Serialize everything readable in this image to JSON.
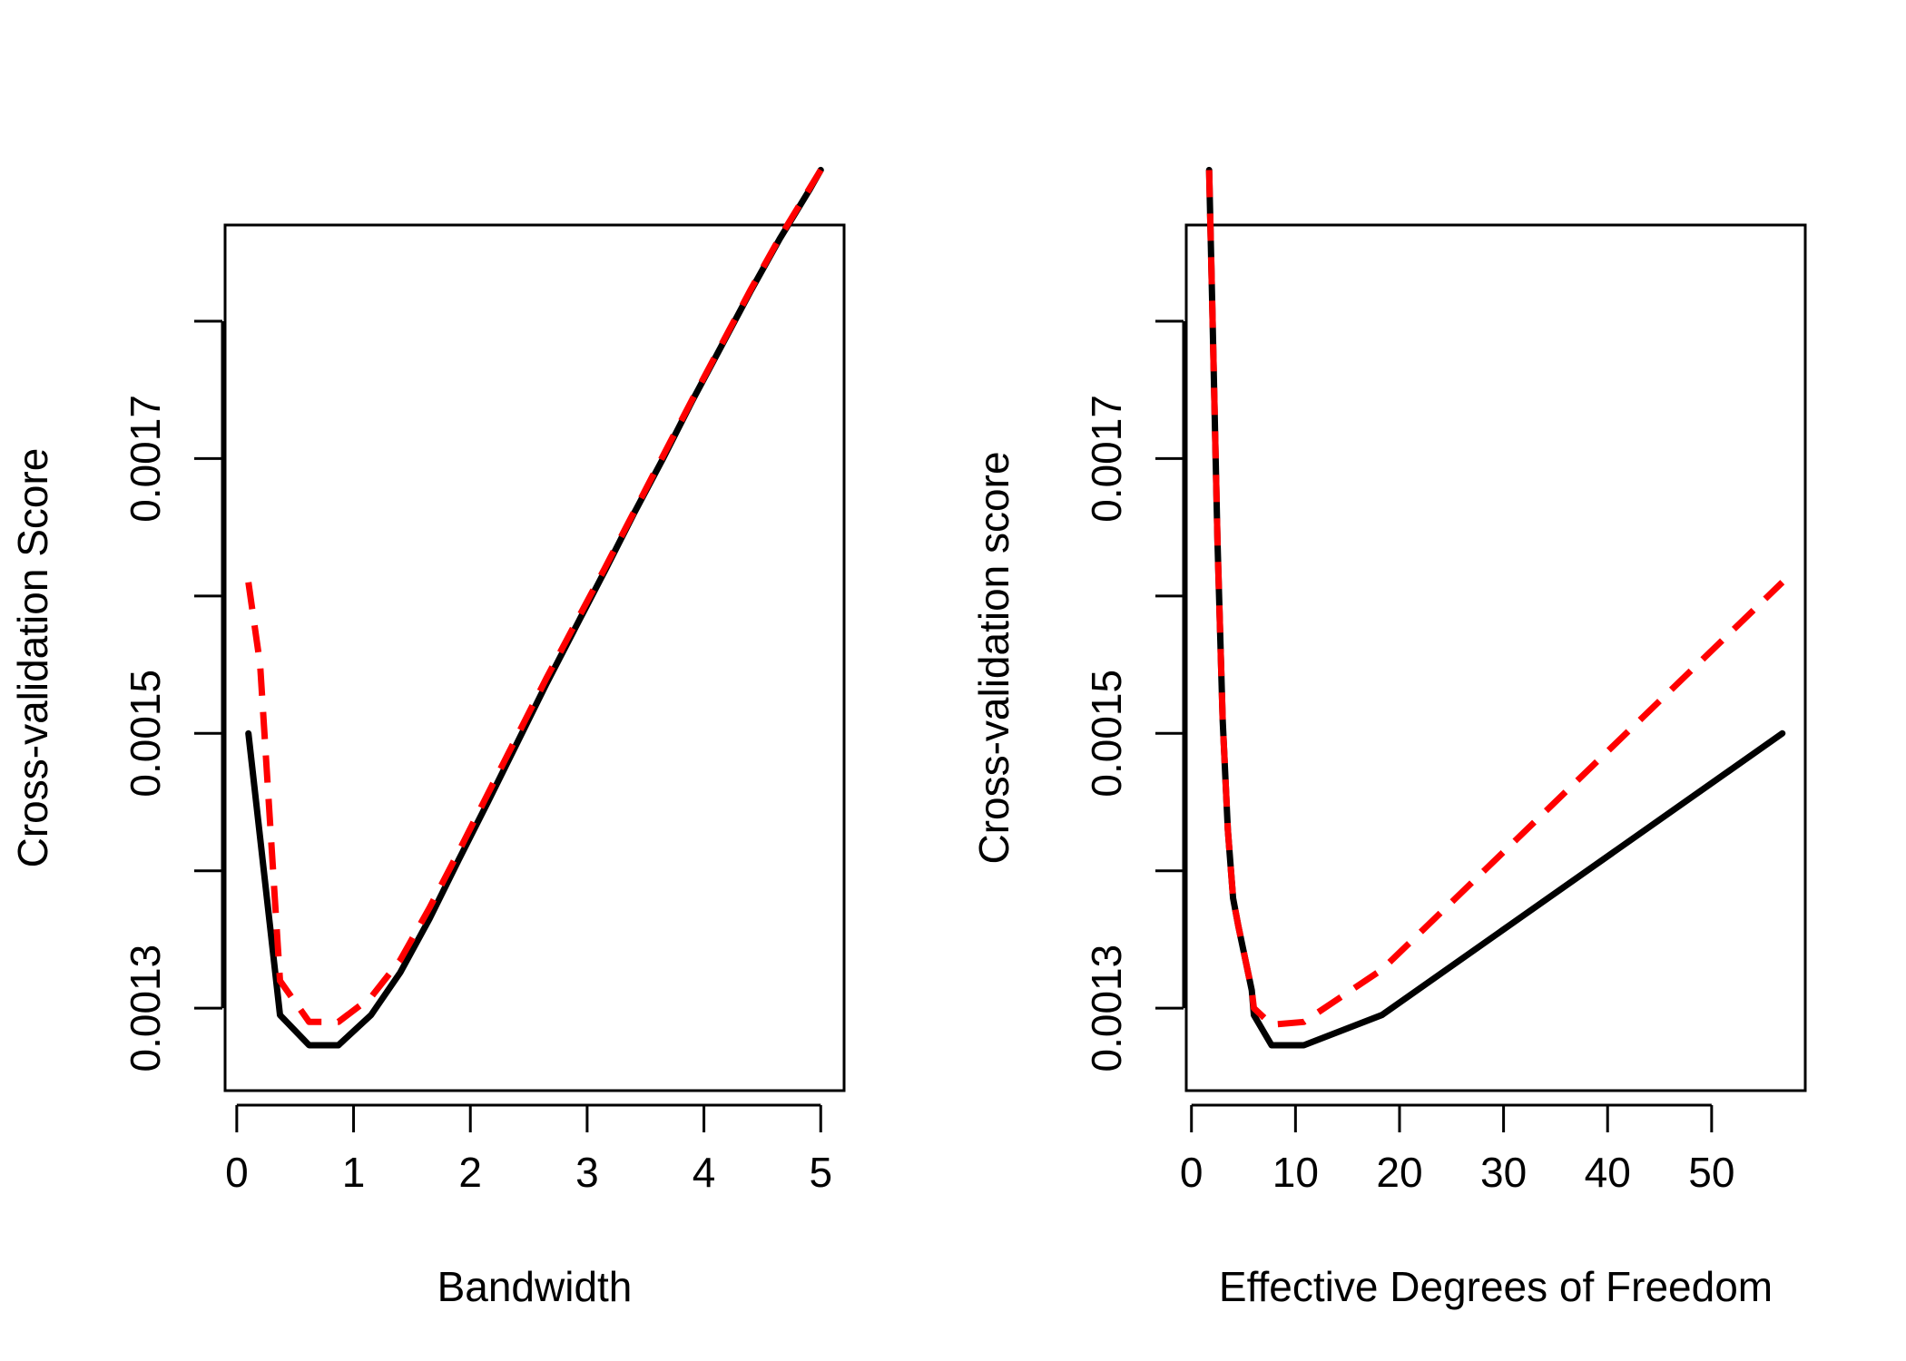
{
  "colors": {
    "background": "#ffffff",
    "ink": "#000000",
    "accent": "#ff0000"
  },
  "chart_data": [
    {
      "type": "line",
      "title": "",
      "xlabel": "Bandwidth",
      "ylabel": "Cross-validation Score",
      "xlim": [
        -0.1,
        5.2
      ],
      "ylim": [
        0.00124,
        0.00187
      ],
      "x_ticks": [
        0,
        1,
        2,
        3,
        4,
        5
      ],
      "x_tick_labels": [
        "0",
        "1",
        "2",
        "3",
        "4",
        "5"
      ],
      "y_ticks": [
        0.0013,
        0.0014,
        0.0015,
        0.0016,
        0.0017,
        0.0018
      ],
      "y_tick_labels": [
        "0.0013",
        "",
        "0.0015",
        "",
        "0.0017",
        ""
      ],
      "grid": false,
      "legend": "none",
      "series": [
        {
          "color": "#000000",
          "dash": "solid",
          "x": [
            0.1,
            0.37,
            0.62,
            0.87,
            1.15,
            1.4,
            1.65,
            1.9,
            2.15,
            2.4,
            2.65,
            2.9,
            3.15,
            3.4,
            3.65,
            3.9,
            4.15,
            4.4,
            4.65,
            4.9,
            5.0
          ],
          "y": [
            0.0015,
            0.001295,
            0.001273,
            0.001273,
            0.001295,
            0.001326,
            0.001365,
            0.001408,
            0.00145,
            0.001493,
            0.001536,
            0.001577,
            0.001618,
            0.00166,
            0.0017,
            0.001742,
            0.001782,
            0.001822,
            0.00186,
            0.001895,
            0.00191
          ]
        },
        {
          "color": "#ff0000",
          "dash": "dashed",
          "x": [
            0.1,
            0.2,
            0.37,
            0.62,
            0.87,
            1.15,
            1.4,
            1.65,
            1.9,
            2.15,
            2.4,
            2.65,
            2.9,
            3.15,
            3.4,
            3.65,
            3.9,
            4.15,
            4.4,
            4.65,
            4.9,
            5.0
          ],
          "y": [
            0.00161,
            0.00155,
            0.00132,
            0.00129,
            0.00129,
            0.001308,
            0.001335,
            0.001373,
            0.001414,
            0.001456,
            0.001498,
            0.00154,
            0.00158,
            0.00162,
            0.001661,
            0.001702,
            0.001743,
            0.001783,
            0.001823,
            0.001861,
            0.001896,
            0.00191
          ]
        }
      ]
    },
    {
      "type": "line",
      "title": "",
      "xlabel": "Effective Degrees of Freedom",
      "ylabel": "Cross-validation score",
      "xlim": [
        -0.5,
        59
      ],
      "ylim": [
        0.00124,
        0.00187
      ],
      "x_ticks": [
        0,
        10,
        20,
        30,
        40,
        50
      ],
      "x_tick_labels": [
        "0",
        "10",
        "20",
        "30",
        "40",
        "50"
      ],
      "y_ticks": [
        0.0013,
        0.0014,
        0.0015,
        0.0016,
        0.0017,
        0.0018
      ],
      "y_tick_labels": [
        "0.0013",
        "",
        "0.0015",
        "",
        "0.0017",
        ""
      ],
      "grid": false,
      "legend": "none",
      "series": [
        {
          "color": "#000000",
          "dash": "solid",
          "x": [
            1.7,
            2.0,
            2.5,
            3.0,
            3.5,
            4.0,
            4.5,
            5.0,
            5.8,
            6.0,
            7.7,
            10.8,
            18.3,
            56.8
          ],
          "y": [
            0.00191,
            0.00181,
            0.00164,
            0.00151,
            0.00143,
            0.00138,
            0.00136,
            0.001342,
            0.001313,
            0.001295,
            0.001273,
            0.001273,
            0.001295,
            0.0015
          ]
        },
        {
          "color": "#ff0000",
          "dash": "dashed",
          "x": [
            1.7,
            2.0,
            2.5,
            3.0,
            3.5,
            4.0,
            4.5,
            5.0,
            5.8,
            6.0,
            7.7,
            10.8,
            18.3,
            56.8
          ],
          "y": [
            0.00191,
            0.00181,
            0.00164,
            0.00151,
            0.00143,
            0.00138,
            0.00136,
            0.001342,
            0.001313,
            0.0013,
            0.001288,
            0.00129,
            0.001328,
            0.00161
          ]
        }
      ]
    }
  ]
}
